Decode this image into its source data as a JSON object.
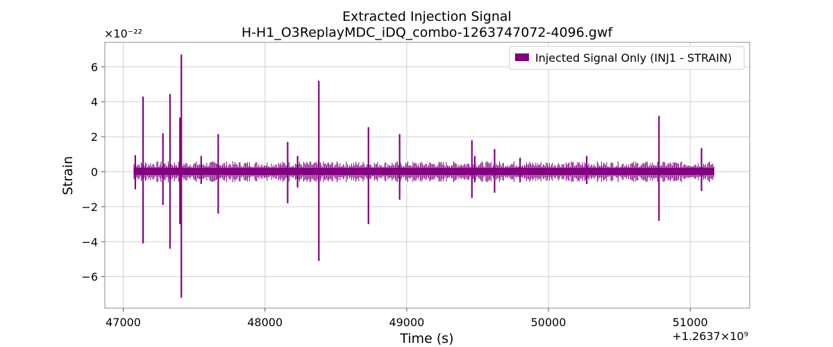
{
  "chart_data": {
    "type": "line",
    "title": "Extracted Injection Signal",
    "subtitle": "H-H1_O3ReplayMDC_iDQ_combo-1263747072-4096.gwf",
    "xlabel": "Time (s)",
    "ylabel": "Strain",
    "x_offset_label": "+1.2637×10⁹",
    "y_scale_label": "×10⁻²²",
    "xlim": [
      46870,
      51420
    ],
    "ylim": [
      -7.8,
      7.4
    ],
    "x_ticks": [
      47000,
      48000,
      49000,
      50000,
      51000
    ],
    "x_tick_labels": [
      "47000",
      "48000",
      "49000",
      "50000",
      "51000"
    ],
    "y_ticks": [
      -6,
      -4,
      -2,
      0,
      2,
      4,
      6
    ],
    "y_tick_labels": [
      "−6",
      "−4",
      "−2",
      "0",
      "2",
      "4",
      "6"
    ],
    "grid": true,
    "legend_position": "top-right",
    "series": [
      {
        "name": "Injected Signal Only (INJ1 - STRAIN)",
        "color": "#800080",
        "background_band": [
          -0.18,
          0.22
        ],
        "x_range": [
          47075,
          51170
        ],
        "spikes": [
          {
            "x": 47085,
            "top": 0.95,
            "bottom": -1.0
          },
          {
            "x": 47140,
            "top": 4.3,
            "bottom": -4.1
          },
          {
            "x": 47280,
            "top": 2.2,
            "bottom": -1.9
          },
          {
            "x": 47330,
            "top": 4.45,
            "bottom": -4.4
          },
          {
            "x": 47400,
            "top": 3.1,
            "bottom": -3.0
          },
          {
            "x": 47410,
            "top": 6.7,
            "bottom": -7.2
          },
          {
            "x": 47550,
            "top": 0.9,
            "bottom": -0.7
          },
          {
            "x": 47670,
            "top": 2.15,
            "bottom": -2.4
          },
          {
            "x": 48160,
            "top": 1.7,
            "bottom": -1.8
          },
          {
            "x": 48230,
            "top": 0.9,
            "bottom": -0.9
          },
          {
            "x": 48380,
            "top": 5.2,
            "bottom": -5.1
          },
          {
            "x": 48730,
            "top": 2.55,
            "bottom": -3.0
          },
          {
            "x": 48950,
            "top": 2.15,
            "bottom": -1.6
          },
          {
            "x": 49460,
            "top": 1.8,
            "bottom": -1.5
          },
          {
            "x": 49480,
            "top": 0.9,
            "bottom": -0.6
          },
          {
            "x": 49620,
            "top": 1.3,
            "bottom": -1.2
          },
          {
            "x": 49800,
            "top": 0.8,
            "bottom": -0.6
          },
          {
            "x": 50270,
            "top": 0.9,
            "bottom": -0.7
          },
          {
            "x": 50780,
            "top": 3.2,
            "bottom": -2.8
          },
          {
            "x": 51080,
            "top": 1.35,
            "bottom": -1.1
          }
        ]
      }
    ]
  }
}
